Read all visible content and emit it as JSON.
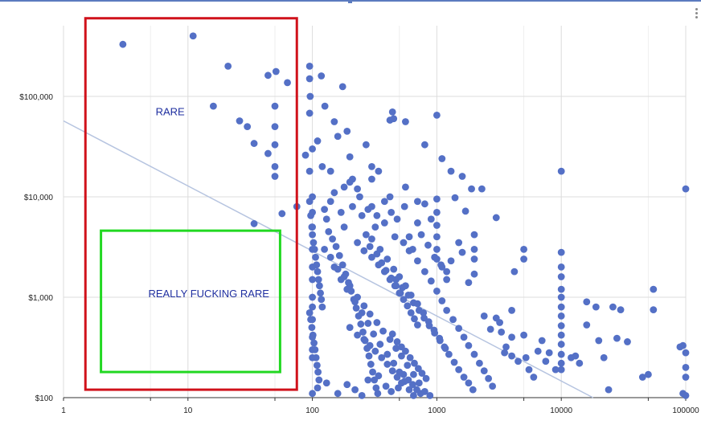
{
  "chart_data": {
    "type": "scatter",
    "title": "",
    "xlabel": "",
    "ylabel": "",
    "x_scale": "log",
    "y_scale": "log",
    "xlim": [
      1,
      100000
    ],
    "ylim": [
      100,
      600000
    ],
    "x_tick_values": [
      1,
      10,
      100,
      1000,
      10000,
      100000
    ],
    "x_tick_labels": [
      "1",
      "10",
      "100",
      "1000",
      "10000",
      "100000"
    ],
    "y_tick_values": [
      100,
      1000,
      10000,
      100000
    ],
    "y_tick_labels": [
      "$100",
      "$1,000",
      "$10,000",
      "$100,000"
    ],
    "grid": true,
    "legend": "none",
    "point_color": "#5470c6",
    "trendline": {
      "color": "#b6c4e0",
      "points": [
        [
          1,
          57000
        ],
        [
          18000,
          100
        ]
      ]
    },
    "annotations": [
      {
        "label": "RARE",
        "color": "#d0121b",
        "x_range": [
          1.5,
          75
        ],
        "y_range": [
          120,
          600000
        ],
        "label_at": [
          5.5,
          65000
        ]
      },
      {
        "label": "REALLY FUCKING RARE",
        "color": "#22d822",
        "x_range": [
          2,
          55
        ],
        "y_range": [
          180,
          4600
        ],
        "label_at": [
          4.8,
          1000
        ]
      }
    ],
    "points": [
      [
        3,
        330000
      ],
      [
        11,
        400000
      ],
      [
        21,
        200000
      ],
      [
        16,
        80000
      ],
      [
        26,
        57000
      ],
      [
        30,
        50000
      ],
      [
        34,
        34000
      ],
      [
        44,
        162000
      ],
      [
        51,
        177000
      ],
      [
        63,
        137000
      ],
      [
        50,
        80000
      ],
      [
        50,
        50000
      ],
      [
        50,
        33000
      ],
      [
        50,
        20000
      ],
      [
        50,
        16000
      ],
      [
        44,
        27000
      ],
      [
        57,
        6800
      ],
      [
        34,
        5400
      ],
      [
        75,
        8000
      ],
      [
        88,
        26000
      ],
      [
        95,
        200000
      ],
      [
        95,
        150000
      ],
      [
        96,
        100000
      ],
      [
        118,
        160000
      ],
      [
        126,
        80000
      ],
      [
        150,
        56000
      ],
      [
        175,
        125000
      ],
      [
        95,
        68000
      ],
      [
        100,
        30000
      ],
      [
        110,
        36000
      ],
      [
        120,
        20000
      ],
      [
        140,
        18000
      ],
      [
        160,
        40000
      ],
      [
        190,
        45000
      ],
      [
        200,
        25000
      ],
      [
        210,
        15000
      ],
      [
        230,
        12000
      ],
      [
        270,
        33000
      ],
      [
        300,
        20000
      ],
      [
        340,
        18000
      ],
      [
        420,
        58000
      ],
      [
        440,
        70000
      ],
      [
        450,
        60000
      ],
      [
        560,
        56000
      ],
      [
        800,
        33000
      ],
      [
        1000,
        65000
      ],
      [
        1100,
        24000
      ],
      [
        1300,
        18000
      ],
      [
        1600,
        16000
      ],
      [
        1900,
        12000
      ],
      [
        2300,
        12000
      ],
      [
        3000,
        6200
      ],
      [
        10000,
        18000
      ],
      [
        100000,
        12000
      ],
      [
        95,
        18000
      ],
      [
        140,
        9000
      ],
      [
        170,
        7000
      ],
      [
        180,
        5000
      ],
      [
        210,
        8000
      ],
      [
        250,
        6500
      ],
      [
        300,
        8000
      ],
      [
        320,
        5000
      ],
      [
        380,
        5500
      ],
      [
        430,
        7000
      ],
      [
        480,
        6000
      ],
      [
        550,
        8000
      ],
      [
        600,
        4000
      ],
      [
        700,
        5500
      ],
      [
        800,
        8500
      ],
      [
        900,
        6000
      ],
      [
        1000,
        9500
      ],
      [
        1000,
        7000
      ],
      [
        1000,
        5200
      ],
      [
        1000,
        4000
      ],
      [
        1000,
        3000
      ],
      [
        1000,
        2400
      ],
      [
        1100,
        2000
      ],
      [
        1200,
        1500
      ],
      [
        1500,
        3500
      ],
      [
        1800,
        1400
      ],
      [
        2000,
        4200
      ],
      [
        2000,
        3000
      ],
      [
        2000,
        2400
      ],
      [
        2000,
        1700
      ],
      [
        1600,
        2800
      ],
      [
        1300,
        2300
      ],
      [
        95,
        9000
      ],
      [
        97,
        6500
      ],
      [
        99,
        5000
      ],
      [
        100,
        4200
      ],
      [
        102,
        3500
      ],
      [
        104,
        3000
      ],
      [
        106,
        2500
      ],
      [
        108,
        2100
      ],
      [
        110,
        1800
      ],
      [
        112,
        1500
      ],
      [
        114,
        1300
      ],
      [
        116,
        1100
      ],
      [
        118,
        950
      ],
      [
        120,
        800
      ],
      [
        95,
        700
      ],
      [
        97,
        600
      ],
      [
        99,
        500
      ],
      [
        101,
        420
      ],
      [
        103,
        350
      ],
      [
        105,
        300
      ],
      [
        107,
        250
      ],
      [
        109,
        210
      ],
      [
        111,
        180
      ],
      [
        113,
        150
      ],
      [
        125,
        7500
      ],
      [
        130,
        6000
      ],
      [
        135,
        4500
      ],
      [
        145,
        3800
      ],
      [
        155,
        3200
      ],
      [
        165,
        2600
      ],
      [
        175,
        2100
      ],
      [
        185,
        1700
      ],
      [
        195,
        1400
      ],
      [
        205,
        1150
      ],
      [
        215,
        950
      ],
      [
        225,
        780
      ],
      [
        235,
        650
      ],
      [
        245,
        540
      ],
      [
        255,
        450
      ],
      [
        265,
        370
      ],
      [
        275,
        310
      ],
      [
        285,
        260
      ],
      [
        295,
        215
      ],
      [
        305,
        180
      ],
      [
        315,
        150
      ],
      [
        325,
        125
      ],
      [
        335,
        110
      ],
      [
        150,
        2000
      ],
      [
        170,
        1500
      ],
      [
        190,
        1200
      ],
      [
        220,
        900
      ],
      [
        250,
        700
      ],
      [
        280,
        550
      ],
      [
        310,
        430
      ],
      [
        350,
        340
      ],
      [
        400,
        270
      ],
      [
        450,
        220
      ],
      [
        500,
        180
      ],
      [
        550,
        145
      ],
      [
        600,
        120
      ],
      [
        650,
        105
      ],
      [
        125,
        3000
      ],
      [
        140,
        2500
      ],
      [
        160,
        1900
      ],
      [
        180,
        1600
      ],
      [
        200,
        1300
      ],
      [
        230,
        1000
      ],
      [
        260,
        820
      ],
      [
        290,
        680
      ],
      [
        330,
        560
      ],
      [
        370,
        460
      ],
      [
        420,
        380
      ],
      [
        470,
        310
      ],
      [
        520,
        260
      ],
      [
        580,
        210
      ],
      [
        650,
        170
      ],
      [
        720,
        140
      ],
      [
        800,
        115
      ],
      [
        880,
        105
      ],
      [
        300,
        3800
      ],
      [
        350,
        3000
      ],
      [
        400,
        2400
      ],
      [
        450,
        1900
      ],
      [
        500,
        1600
      ],
      [
        560,
        1300
      ],
      [
        620,
        1050
      ],
      [
        700,
        860
      ],
      [
        780,
        700
      ],
      [
        860,
        570
      ],
      [
        950,
        470
      ],
      [
        1050,
        390
      ],
      [
        1150,
        320
      ],
      [
        1250,
        270
      ],
      [
        1380,
        225
      ],
      [
        1500,
        190
      ],
      [
        1650,
        160
      ],
      [
        1800,
        140
      ],
      [
        1950,
        120
      ],
      [
        600,
        2900
      ],
      [
        700,
        2300
      ],
      [
        800,
        1800
      ],
      [
        900,
        1450
      ],
      [
        1000,
        1150
      ],
      [
        1100,
        920
      ],
      [
        1200,
        740
      ],
      [
        1350,
        600
      ],
      [
        1500,
        490
      ],
      [
        1650,
        400
      ],
      [
        1800,
        330
      ],
      [
        2000,
        270
      ],
      [
        2200,
        220
      ],
      [
        2400,
        185
      ],
      [
        2600,
        155
      ],
      [
        2800,
        130
      ],
      [
        3000,
        620
      ],
      [
        3300,
        450
      ],
      [
        3600,
        320
      ],
      [
        4000,
        260
      ],
      [
        4500,
        230
      ],
      [
        5000,
        420
      ],
      [
        5000,
        3000
      ],
      [
        5000,
        2400
      ],
      [
        5500,
        190
      ],
      [
        6000,
        160
      ],
      [
        7000,
        370
      ],
      [
        7500,
        230
      ],
      [
        8000,
        280
      ],
      [
        9000,
        190
      ],
      [
        10000,
        2800
      ],
      [
        10000,
        2000
      ],
      [
        10000,
        1600
      ],
      [
        10000,
        1200
      ],
      [
        10000,
        1000
      ],
      [
        10000,
        800
      ],
      [
        10000,
        650
      ],
      [
        10000,
        520
      ],
      [
        10000,
        420
      ],
      [
        10000,
        340
      ],
      [
        10000,
        270
      ],
      [
        10000,
        220
      ],
      [
        10000,
        190
      ],
      [
        12000,
        250
      ],
      [
        13000,
        260
      ],
      [
        14000,
        220
      ],
      [
        16000,
        900
      ],
      [
        16000,
        530
      ],
      [
        19000,
        800
      ],
      [
        20000,
        370
      ],
      [
        22000,
        250
      ],
      [
        24000,
        120
      ],
      [
        26000,
        800
      ],
      [
        28000,
        390
      ],
      [
        30000,
        750
      ],
      [
        34000,
        360
      ],
      [
        45000,
        160
      ],
      [
        50000,
        170
      ],
      [
        55000,
        1200
      ],
      [
        55000,
        750
      ],
      [
        90000,
        320
      ],
      [
        95000,
        330
      ],
      [
        100000,
        280
      ],
      [
        100000,
        200
      ],
      [
        100000,
        160
      ],
      [
        95000,
        110
      ],
      [
        100000,
        105
      ],
      [
        4000,
        740
      ],
      [
        4000,
        400
      ],
      [
        3200,
        560
      ],
      [
        3500,
        280
      ],
      [
        2700,
        480
      ],
      [
        2400,
        650
      ],
      [
        4200,
        1800
      ],
      [
        5200,
        250
      ],
      [
        6500,
        290
      ],
      [
        440,
        430
      ],
      [
        480,
        360
      ],
      [
        520,
        320
      ],
      [
        560,
        290
      ],
      [
        610,
        250
      ],
      [
        660,
        220
      ],
      [
        710,
        195
      ],
      [
        760,
        175
      ],
      [
        820,
        155
      ],
      [
        470,
        1500
      ],
      [
        530,
        1250
      ],
      [
        590,
        1050
      ],
      [
        650,
        880
      ],
      [
        720,
        740
      ],
      [
        790,
        620
      ],
      [
        870,
        520
      ],
      [
        960,
        440
      ],
      [
        1060,
        370
      ],
      [
        1170,
        310
      ],
      [
        270,
        4200
      ],
      [
        290,
        3200
      ],
      [
        330,
        2700
      ],
      [
        360,
        2200
      ],
      [
        390,
        1850
      ],
      [
        430,
        1550
      ],
      [
        470,
        1300
      ],
      [
        510,
        1100
      ],
      [
        200,
        14000
      ],
      [
        240,
        10000
      ],
      [
        280,
        7500
      ],
      [
        330,
        6500
      ],
      [
        380,
        9000
      ],
      [
        460,
        4000
      ],
      [
        540,
        3500
      ],
      [
        640,
        3000
      ],
      [
        750,
        4200
      ],
      [
        850,
        3300
      ],
      [
        960,
        2500
      ],
      [
        1080,
        2100
      ],
      [
        1200,
        1800
      ],
      [
        150,
        11000
      ],
      [
        180,
        12500
      ],
      [
        300,
        15000
      ],
      [
        420,
        10000
      ],
      [
        560,
        12500
      ],
      [
        700,
        9000
      ],
      [
        1400,
        9800
      ],
      [
        1700,
        7200
      ],
      [
        200,
        500
      ],
      [
        230,
        420
      ],
      [
        260,
        380
      ],
      [
        290,
        330
      ],
      [
        320,
        290
      ],
      [
        360,
        250
      ],
      [
        400,
        215
      ],
      [
        440,
        185
      ],
      [
        480,
        160
      ],
      [
        520,
        140
      ],
      [
        100,
        110
      ],
      [
        110,
        125
      ],
      [
        130,
        140
      ],
      [
        160,
        110
      ],
      [
        190,
        135
      ],
      [
        220,
        120
      ],
      [
        250,
        105
      ],
      [
        280,
        150
      ],
      [
        340,
        165
      ],
      [
        390,
        130
      ],
      [
        430,
        115
      ],
      [
        490,
        125
      ],
      [
        540,
        170
      ],
      [
        590,
        150
      ],
      [
        640,
        135
      ],
      [
        690,
        120
      ],
      [
        740,
        110
      ],
      [
        100,
        1000
      ],
      [
        100,
        800
      ],
      [
        100,
        600
      ],
      [
        100,
        400
      ],
      [
        100,
        300
      ],
      [
        100,
        250
      ],
      [
        100,
        2000
      ],
      [
        100,
        1500
      ],
      [
        100,
        3000
      ],
      [
        100,
        5000
      ],
      [
        100,
        7000
      ],
      [
        100,
        10000
      ],
      [
        230,
        3500
      ],
      [
        260,
        2900
      ],
      [
        300,
        2500
      ],
      [
        340,
        2100
      ],
      [
        380,
        1800
      ],
      [
        420,
        1500
      ],
      [
        460,
        1300
      ],
      [
        500,
        1100
      ],
      [
        540,
        950
      ],
      [
        580,
        820
      ],
      [
        620,
        700
      ],
      [
        660,
        610
      ],
      [
        700,
        530
      ]
    ]
  }
}
